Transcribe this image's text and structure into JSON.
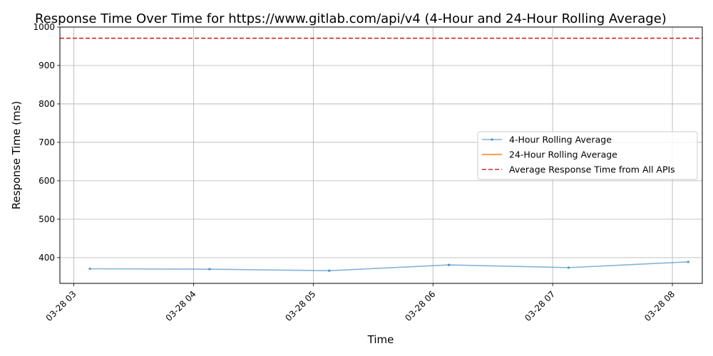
{
  "chart_data": {
    "type": "line",
    "title": "Response Time Over Time for https://www.gitlab.com/api/v4 (4-Hour and 24-Hour Rolling Average)",
    "xlabel": "Time",
    "ylabel": "Response Time (ms)",
    "x_ticks": [
      "03-28 03",
      "03-28 04",
      "03-28 05",
      "03-28 06",
      "03-28 07",
      "03-28 08"
    ],
    "xlim": [
      "2024-03-28T02:53",
      "2024-03-28T08:15"
    ],
    "ylim": [
      333,
      1000
    ],
    "y_ticks": [
      400,
      500,
      600,
      700,
      800,
      900,
      1000
    ],
    "grid": true,
    "legend_position": "center-right",
    "series": [
      {
        "name": "4-Hour Rolling Average",
        "color": "#1f77b4",
        "style": "solid-with-markers",
        "x": [
          "2024-03-28T03:08",
          "2024-03-28T04:08",
          "2024-03-28T05:08",
          "2024-03-28T06:08",
          "2024-03-28T07:08",
          "2024-03-28T08:08"
        ],
        "y": [
          371,
          370,
          366,
          381,
          374,
          389
        ]
      },
      {
        "name": "24-Hour Rolling Average",
        "color": "#ff7f0e",
        "style": "solid",
        "x": [],
        "y": []
      },
      {
        "name": "Average Response Time from All APIs",
        "color": "#d62728",
        "style": "dashed-hline",
        "y": 971
      }
    ]
  }
}
